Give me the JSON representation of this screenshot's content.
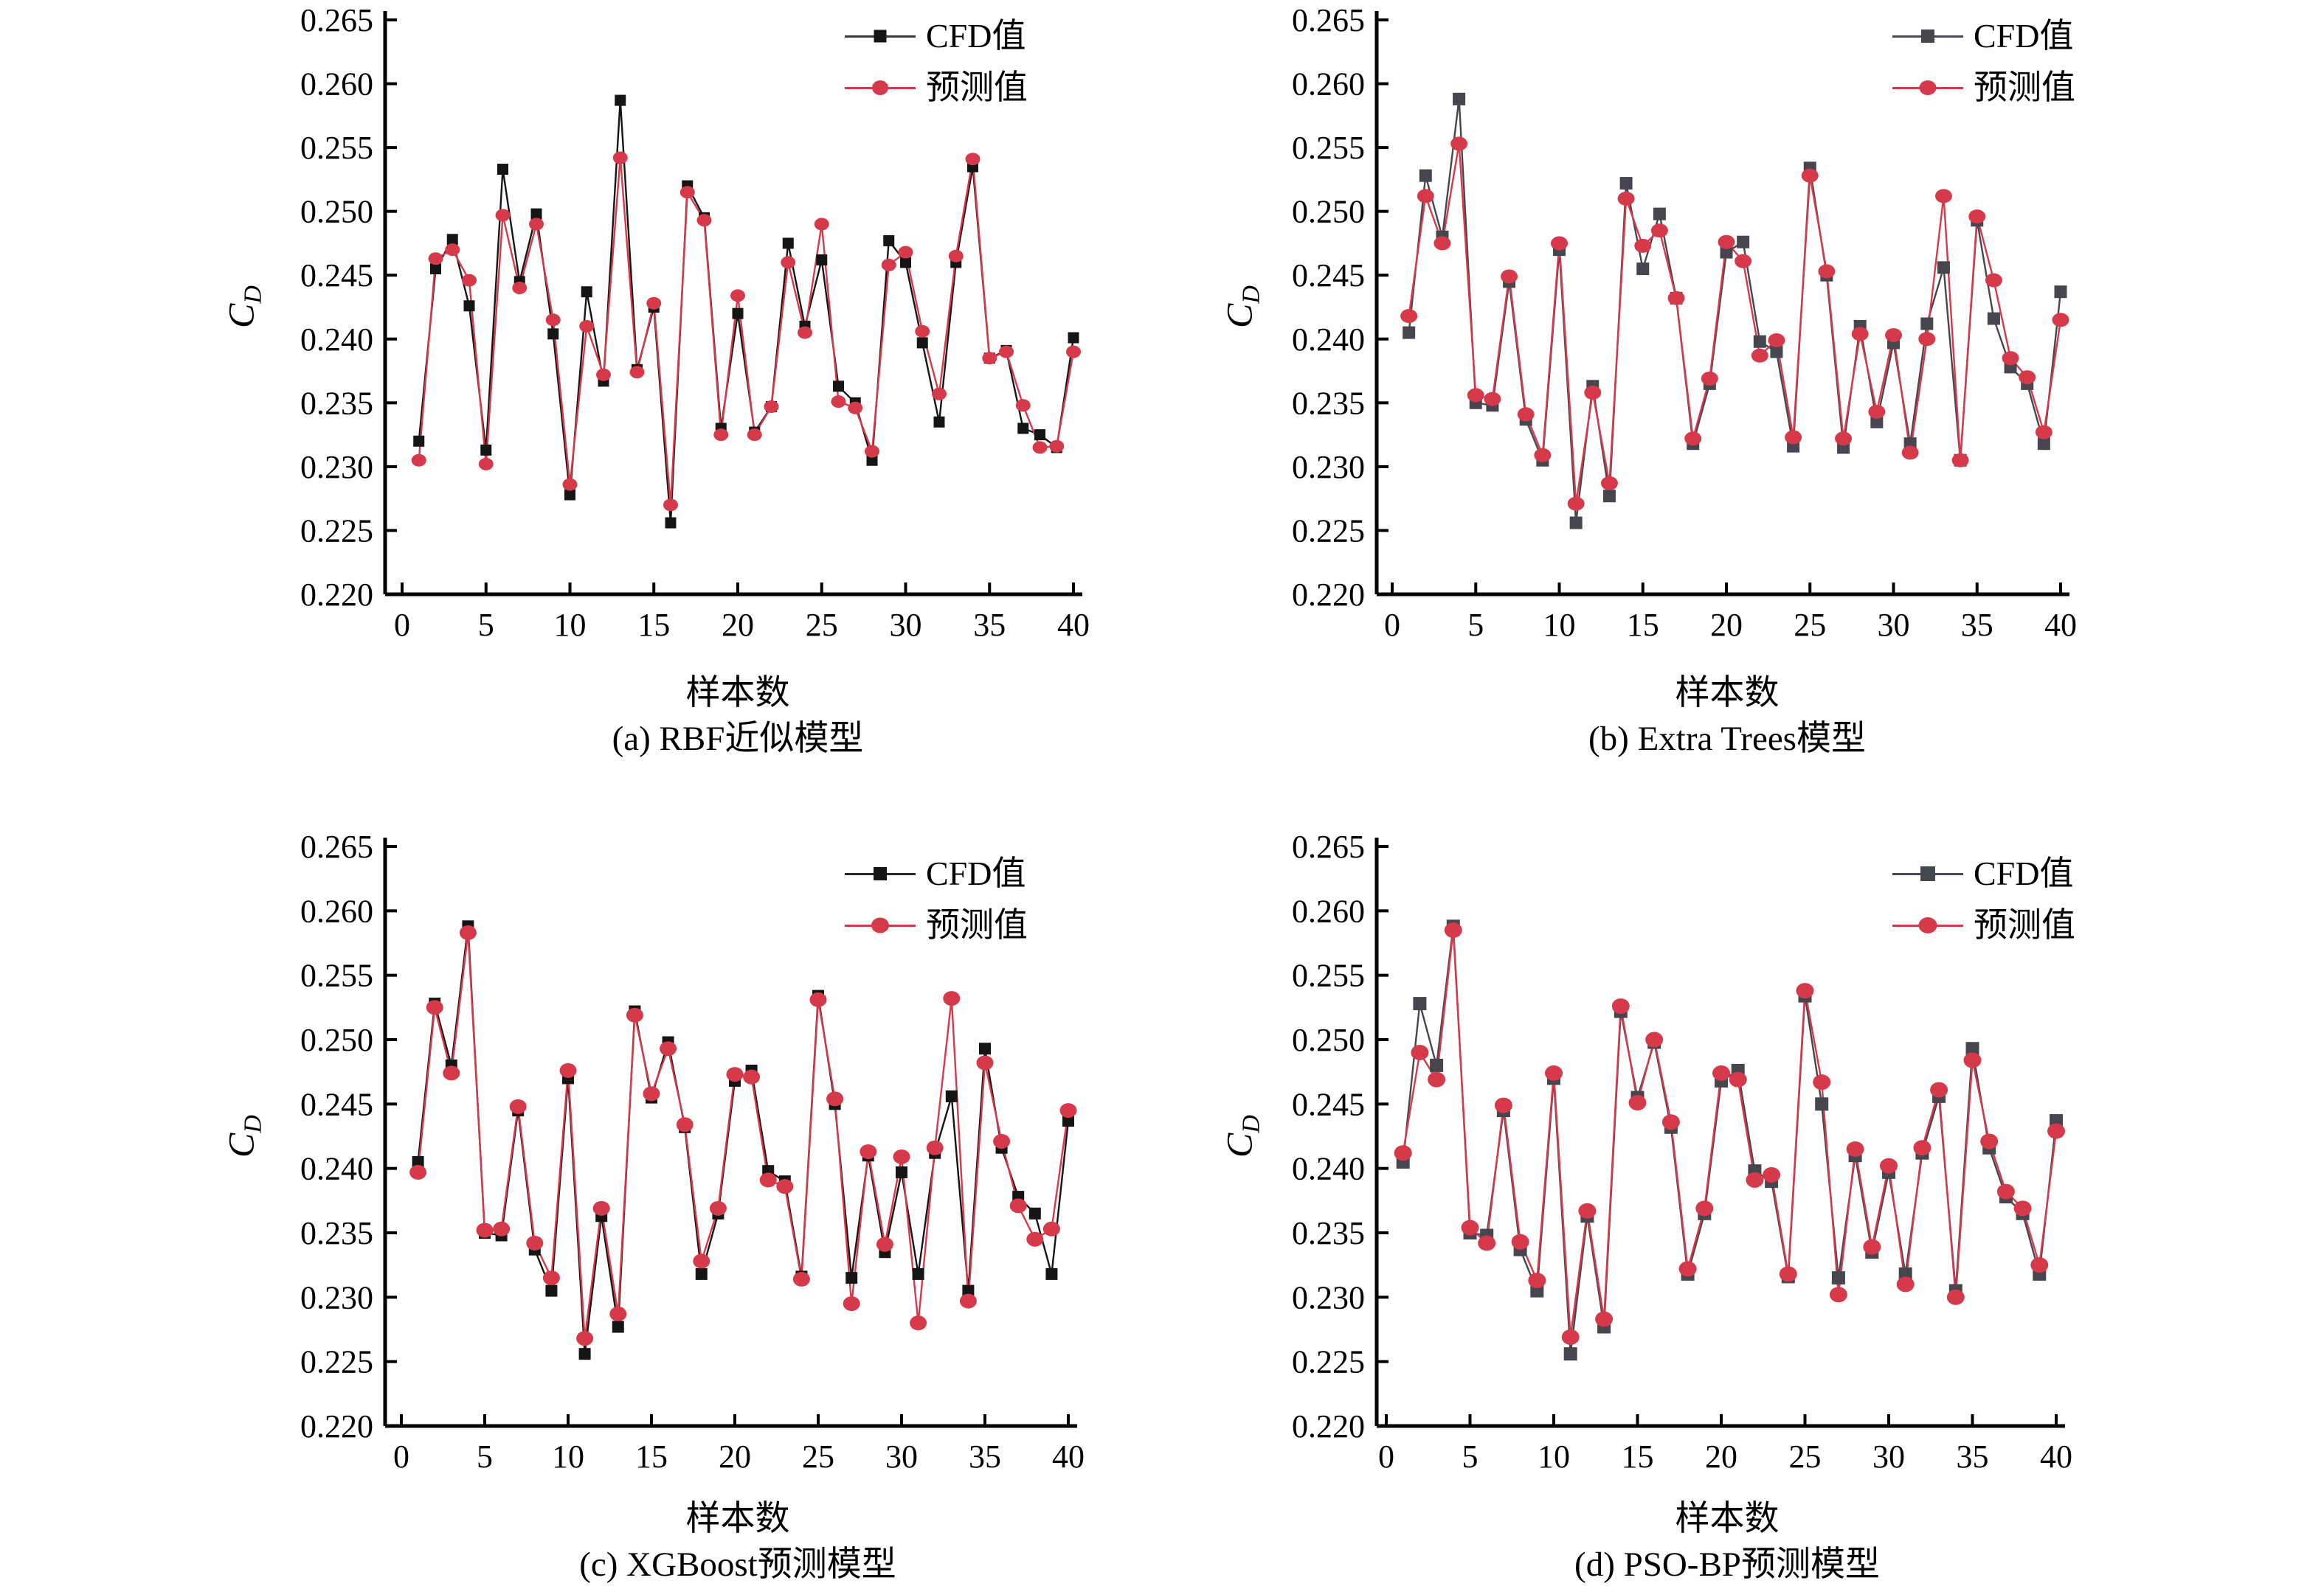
{
  "figure": {
    "xlabel": "样本数",
    "ylabel_base": "C",
    "ylabel_sub": "D",
    "legend_cfd": "CFD值",
    "legend_pred": "预测值",
    "y_tick_labels": [
      "0.265",
      "0.260",
      "0.255",
      "0.250",
      "0.245",
      "0.240",
      "0.235",
      "0.230",
      "0.225",
      "0.220"
    ],
    "x_tick_labels": [
      "0",
      "5",
      "10",
      "15",
      "20",
      "25",
      "30",
      "35",
      "40"
    ]
  },
  "colors": {
    "cfd_black": "#151515",
    "cfd_gray": "#46464e",
    "pred_red": "#d6394a",
    "axis": "#000000"
  },
  "chart_data": {
    "type": "line",
    "x_label": "样本数",
    "y_label": "C_D",
    "ylim": [
      0.22,
      0.265
    ],
    "xlim": [
      0,
      40
    ],
    "grid": false,
    "legend_position": "top-right-inside",
    "x": [
      1,
      2,
      3,
      4,
      5,
      6,
      7,
      8,
      9,
      10,
      11,
      12,
      13,
      14,
      15,
      16,
      17,
      18,
      19,
      20,
      21,
      22,
      23,
      24,
      25,
      26,
      27,
      28,
      29,
      30,
      31,
      32,
      33,
      34,
      35,
      36,
      37,
      38,
      39,
      40
    ],
    "panels": [
      {
        "title": "(a) RBF近似模型",
        "series": [
          {
            "name": "CFD值",
            "marker": "square",
            "values": [
              0.232,
              0.2455,
              0.2478,
              0.2426,
              0.2313,
              0.2533,
              0.2445,
              0.2498,
              0.2404,
              0.2278,
              0.2437,
              0.2367,
              0.2587,
              0.2376,
              0.2425,
              0.2256,
              0.252,
              0.2495,
              0.233,
              0.242,
              0.2327,
              0.2347,
              0.2475,
              0.241,
              0.2462,
              0.2363,
              0.235,
              0.2305,
              0.2477,
              0.246,
              0.2397,
              0.2335,
              0.246,
              0.2535,
              0.2385,
              0.2391,
              0.233,
              0.2325,
              0.2315,
              0.2401
            ]
          },
          {
            "name": "预测值",
            "marker": "circle",
            "values": [
              0.2305,
              0.2463,
              0.247,
              0.2446,
              0.2302,
              0.2497,
              0.244,
              0.249,
              0.2415,
              0.2286,
              0.241,
              0.2372,
              0.2542,
              0.2374,
              0.2428,
              0.227,
              0.2515,
              0.2493,
              0.2325,
              0.2434,
              0.2325,
              0.2347,
              0.246,
              0.2405,
              0.249,
              0.2351,
              0.2346,
              0.2312,
              0.2458,
              0.2468,
              0.2406,
              0.2357,
              0.2465,
              0.2541,
              0.2385,
              0.239,
              0.2348,
              0.2315,
              0.2316,
              0.239
            ]
          }
        ]
      },
      {
        "title": "(b) Extra Trees模型",
        "series": [
          {
            "name": "CFD值",
            "marker": "square",
            "values": [
              0.2405,
              0.2528,
              0.248,
              0.2588,
              0.235,
              0.2348,
              0.2445,
              0.2337,
              0.2305,
              0.247,
              0.2256,
              0.2363,
              0.2277,
              0.2522,
              0.2455,
              0.2498,
              0.2432,
              0.2318,
              0.2365,
              0.2468,
              0.2476,
              0.2398,
              0.239,
              0.2316,
              0.2534,
              0.245,
              0.2315,
              0.241,
              0.2335,
              0.2397,
              0.2318,
              0.2412,
              0.2456,
              0.2305,
              0.2493,
              0.2416,
              0.2378,
              0.2365,
              0.2318,
              0.2437
            ]
          },
          {
            "name": "预测值",
            "marker": "circle",
            "values": [
              0.2418,
              0.2512,
              0.2475,
              0.2553,
              0.2356,
              0.2353,
              0.2449,
              0.2341,
              0.2309,
              0.2475,
              0.2271,
              0.2358,
              0.2287,
              0.251,
              0.2473,
              0.2485,
              0.2432,
              0.2322,
              0.2369,
              0.2476,
              0.2461,
              0.2387,
              0.2399,
              0.2323,
              0.2528,
              0.2453,
              0.2322,
              0.2404,
              0.2343,
              0.2403,
              0.2311,
              0.24,
              0.2512,
              0.2305,
              0.2496,
              0.2446,
              0.2385,
              0.237,
              0.2327,
              0.2415
            ]
          }
        ]
      },
      {
        "title": "(c) XGBoost预测模型",
        "series": [
          {
            "name": "CFD值",
            "marker": "square",
            "values": [
              0.2405,
              0.2528,
              0.248,
              0.2588,
              0.235,
              0.2348,
              0.2445,
              0.2337,
              0.2305,
              0.247,
              0.2256,
              0.2363,
              0.2277,
              0.2522,
              0.2455,
              0.2498,
              0.2432,
              0.2318,
              0.2365,
              0.2468,
              0.2476,
              0.2398,
              0.239,
              0.2316,
              0.2534,
              0.245,
              0.2315,
              0.241,
              0.2335,
              0.2397,
              0.2318,
              0.2412,
              0.2456,
              0.2305,
              0.2493,
              0.2416,
              0.2378,
              0.2365,
              0.2318,
              0.2437
            ]
          },
          {
            "name": "预测值",
            "marker": "circle",
            "values": [
              0.2397,
              0.2525,
              0.2474,
              0.2583,
              0.2352,
              0.2353,
              0.2448,
              0.2342,
              0.2315,
              0.2476,
              0.2268,
              0.2369,
              0.2287,
              0.2519,
              0.2458,
              0.2493,
              0.2434,
              0.2328,
              0.2369,
              0.2473,
              0.2471,
              0.2391,
              0.2386,
              0.2314,
              0.2531,
              0.2454,
              0.2295,
              0.2413,
              0.2341,
              0.2409,
              0.228,
              0.2416,
              0.2532,
              0.2297,
              0.2482,
              0.2421,
              0.2371,
              0.2345,
              0.2353,
              0.2445
            ]
          }
        ]
      },
      {
        "title": "(d) PSO-BP预测模型",
        "series": [
          {
            "name": "CFD值",
            "marker": "square",
            "values": [
              0.2405,
              0.2528,
              0.248,
              0.2588,
              0.235,
              0.2348,
              0.2445,
              0.2337,
              0.2305,
              0.247,
              0.2256,
              0.2363,
              0.2277,
              0.2522,
              0.2455,
              0.2498,
              0.2432,
              0.2318,
              0.2365,
              0.2468,
              0.2476,
              0.2398,
              0.239,
              0.2316,
              0.2534,
              0.245,
              0.2315,
              0.241,
              0.2335,
              0.2397,
              0.2318,
              0.2412,
              0.2456,
              0.2305,
              0.2493,
              0.2416,
              0.2378,
              0.2365,
              0.2318,
              0.2437
            ]
          },
          {
            "name": "预测值",
            "marker": "circle",
            "values": [
              0.2412,
              0.249,
              0.2469,
              0.2585,
              0.2354,
              0.2342,
              0.2449,
              0.2343,
              0.2313,
              0.2474,
              0.2269,
              0.2367,
              0.2283,
              0.2526,
              0.2451,
              0.25,
              0.2436,
              0.2322,
              0.2369,
              0.2474,
              0.2469,
              0.2391,
              0.2395,
              0.2318,
              0.2538,
              0.2467,
              0.2302,
              0.2415,
              0.2339,
              0.2402,
              0.231,
              0.2416,
              0.2461,
              0.23,
              0.2484,
              0.2421,
              0.2382,
              0.2369,
              0.2325,
              0.2429
            ]
          }
        ]
      }
    ]
  }
}
